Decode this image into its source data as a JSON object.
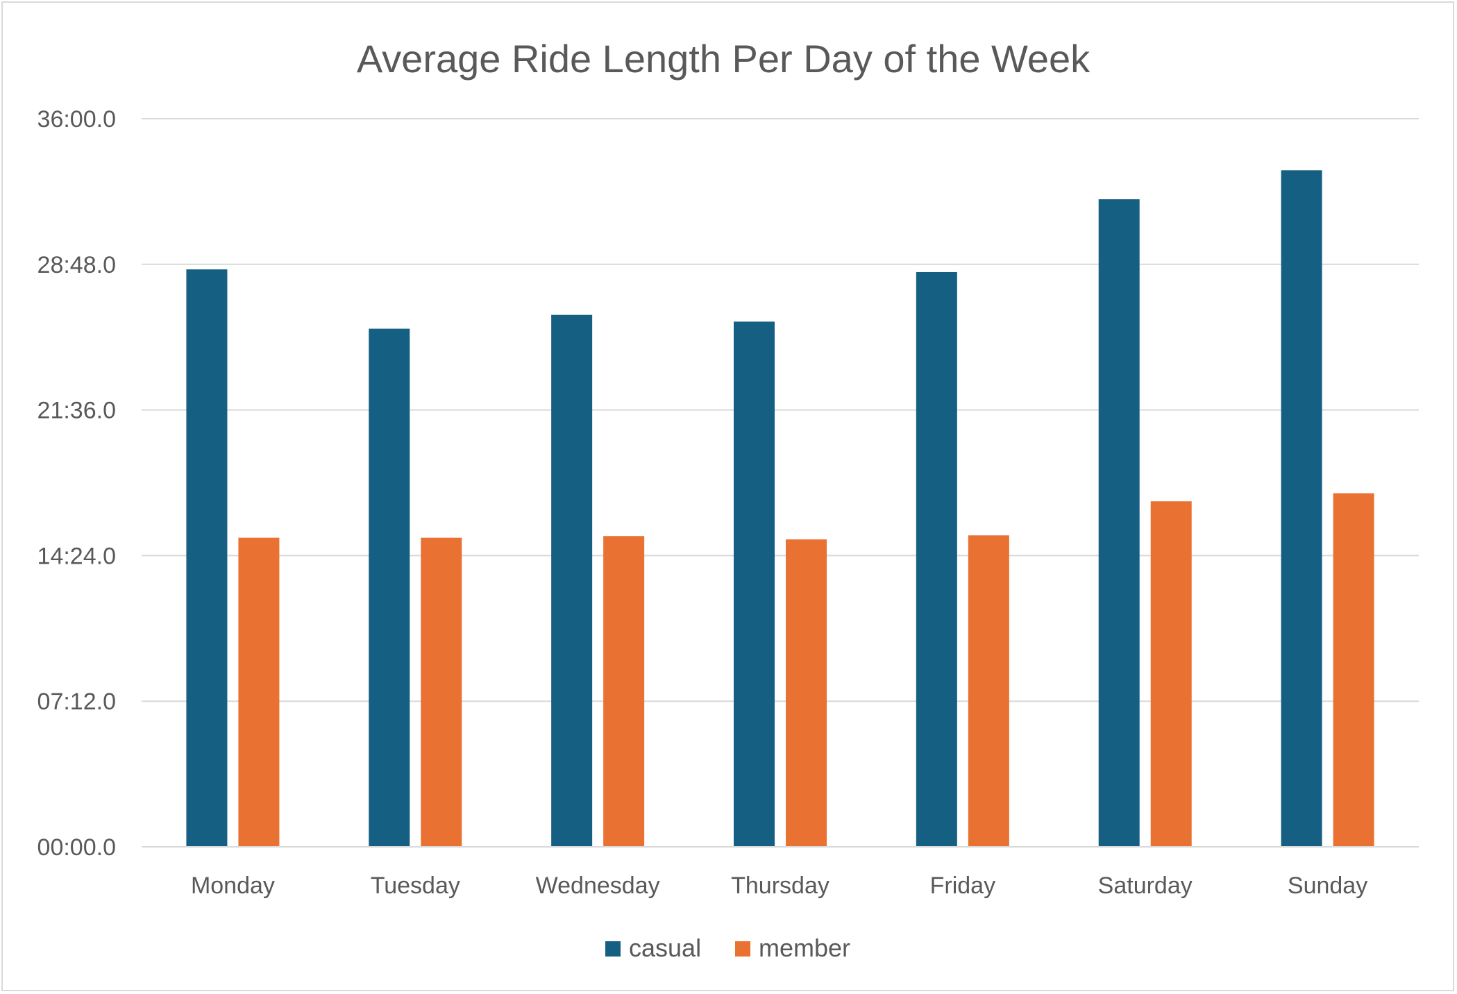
{
  "chart_data": {
    "type": "bar",
    "title": "Average Ride Length Per Day of the Week",
    "xlabel": "",
    "ylabel": "",
    "categories": [
      "Monday",
      "Tuesday",
      "Wednesday",
      "Thursday",
      "Friday",
      "Saturday",
      "Sunday"
    ],
    "y_ticks": [
      "00:00.0",
      "07:12.0",
      "14:24.0",
      "21:36.0",
      "28:48.0",
      "36:00.0"
    ],
    "ylim": [
      "00:00.0",
      "36:00.0"
    ],
    "value_unit": "mm:ss.s",
    "series": [
      {
        "name": "casual",
        "color": "#156082",
        "values": [
          "28:33.0",
          "25:37.0",
          "26:18.0",
          "25:58.0",
          "28:25.0",
          "32:01.0",
          "33:27.0"
        ]
      },
      {
        "name": "member",
        "color": "#E97132",
        "values": [
          "15:17.0",
          "15:17.0",
          "15:22.0",
          "15:12.0",
          "15:24.0",
          "17:05.0",
          "17:29.0"
        ]
      }
    ],
    "grid": true,
    "legend_position": "bottom"
  }
}
